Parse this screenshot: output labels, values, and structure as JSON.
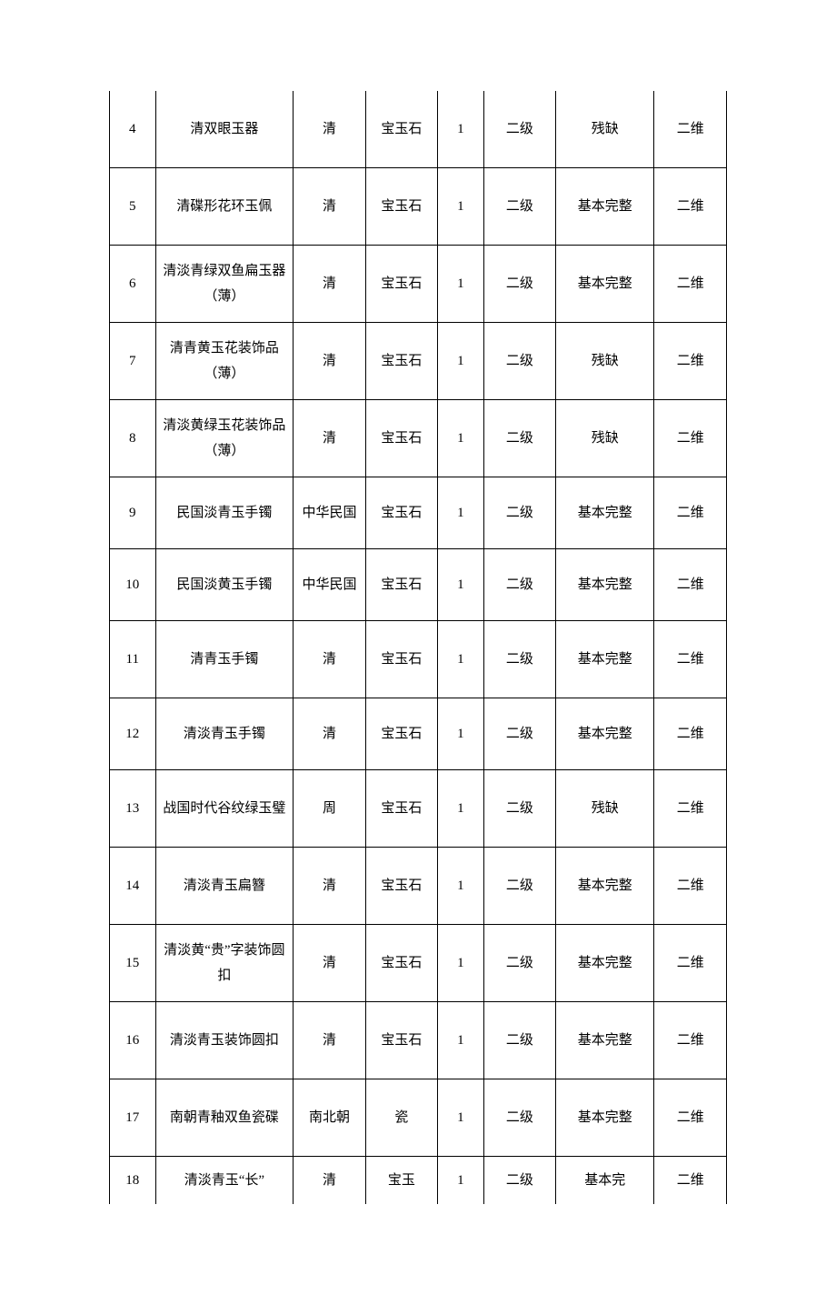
{
  "table": {
    "column_widths_pct": [
      7,
      21,
      11,
      11,
      7,
      11,
      15,
      11
    ],
    "rows": [
      {
        "idx": "4",
        "name": "清双眼玉器",
        "era": "清",
        "material": "宝玉石",
        "qty": "1",
        "grade": "二级",
        "condition": "残缺",
        "dim": "二维",
        "h": "tall"
      },
      {
        "idx": "5",
        "name": "清碟形花环玉佩",
        "era": "清",
        "material": "宝玉石",
        "qty": "1",
        "grade": "二级",
        "condition": "基本完整",
        "dim": "二维",
        "h": "tall"
      },
      {
        "idx": "6",
        "name": "清淡青绿双鱼扁玉器（薄）",
        "era": "清",
        "material": "宝玉石",
        "qty": "1",
        "grade": "二级",
        "condition": "基本完整",
        "dim": "二维",
        "h": "tall"
      },
      {
        "idx": "7",
        "name": "清青黄玉花装饰品（薄）",
        "era": "清",
        "material": "宝玉石",
        "qty": "1",
        "grade": "二级",
        "condition": "残缺",
        "dim": "二维",
        "h": "tall"
      },
      {
        "idx": "8",
        "name": "清淡黄绿玉花装饰品（薄）",
        "era": "清",
        "material": "宝玉石",
        "qty": "1",
        "grade": "二级",
        "condition": "残缺",
        "dim": "二维",
        "h": "tall"
      },
      {
        "idx": "9",
        "name": "民国淡青玉手镯",
        "era": "中华民国",
        "material": "宝玉石",
        "qty": "1",
        "grade": "二级",
        "condition": "基本完整",
        "dim": "二维",
        "h": "med"
      },
      {
        "idx": "10",
        "name": "民国淡黄玉手镯",
        "era": "中华民国",
        "material": "宝玉石",
        "qty": "1",
        "grade": "二级",
        "condition": "基本完整",
        "dim": "二维",
        "h": "med"
      },
      {
        "idx": "11",
        "name": "清青玉手镯",
        "era": "清",
        "material": "宝玉石",
        "qty": "1",
        "grade": "二级",
        "condition": "基本完整",
        "dim": "二维",
        "h": "tall"
      },
      {
        "idx": "12",
        "name": "清淡青玉手镯",
        "era": "清",
        "material": "宝玉石",
        "qty": "1",
        "grade": "二级",
        "condition": "基本完整",
        "dim": "二维",
        "h": "med"
      },
      {
        "idx": "13",
        "name": "战国时代谷纹绿玉璧",
        "era": "周",
        "material": "宝玉石",
        "qty": "1",
        "grade": "二级",
        "condition": "残缺",
        "dim": "二维",
        "h": "tall"
      },
      {
        "idx": "14",
        "name": "清淡青玉扁簪",
        "era": "清",
        "material": "宝玉石",
        "qty": "1",
        "grade": "二级",
        "condition": "基本完整",
        "dim": "二维",
        "h": "tall"
      },
      {
        "idx": "15",
        "name": "清淡黄“贵”字装饰圆扣",
        "era": "清",
        "material": "宝玉石",
        "qty": "1",
        "grade": "二级",
        "condition": "基本完整",
        "dim": "二维",
        "h": "tall"
      },
      {
        "idx": "16",
        "name": "清淡青玉装饰圆扣",
        "era": "清",
        "material": "宝玉石",
        "qty": "1",
        "grade": "二级",
        "condition": "基本完整",
        "dim": "二维",
        "h": "tall"
      },
      {
        "idx": "17",
        "name": "南朝青釉双鱼瓷碟",
        "era": "南北朝",
        "material": "瓷",
        "qty": "1",
        "grade": "二级",
        "condition": "基本完整",
        "dim": "二维",
        "h": "tall"
      },
      {
        "idx": "18",
        "name": "清淡青玉“长”",
        "era": "清",
        "material": "宝玉",
        "qty": "1",
        "grade": "二级",
        "condition": "基本完",
        "dim": "二维",
        "h": "short"
      }
    ]
  }
}
